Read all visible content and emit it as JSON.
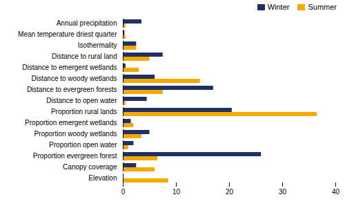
{
  "chart_data": {
    "type": "bar",
    "orientation": "horizontal",
    "categories": [
      "Annual precipitation",
      "Mean temperature driest quarter",
      "Isothermality",
      "Distance to rural land",
      "Distance to emergent wetlands",
      "Distance to woody wetlands",
      "Distance to evergreen forests",
      "Distance to open water",
      "Proportion rural lands",
      "Proportion emergent wetlands",
      "Proportion woody wetlands",
      "Proportion open water",
      "Proportion evergreen forest",
      "Canopy coverage",
      "Elevation"
    ],
    "series": [
      {
        "name": "Winter",
        "color": "#1f3068",
        "values": [
          3.5,
          0.3,
          2.5,
          7.5,
          0.5,
          6.0,
          17.0,
          4.5,
          20.5,
          1.5,
          5.0,
          2.0,
          26.0,
          2.5,
          0.0
        ]
      },
      {
        "name": "Summer",
        "color": "#f5a800",
        "values": [
          0.5,
          0.5,
          2.5,
          5.0,
          3.0,
          14.5,
          7.5,
          0.5,
          36.5,
          2.0,
          3.5,
          1.0,
          6.5,
          6.0,
          8.5
        ]
      }
    ],
    "xlim": [
      0,
      40
    ],
    "xticks": [
      0,
      10,
      20,
      30,
      40
    ],
    "legend": "upper right"
  }
}
